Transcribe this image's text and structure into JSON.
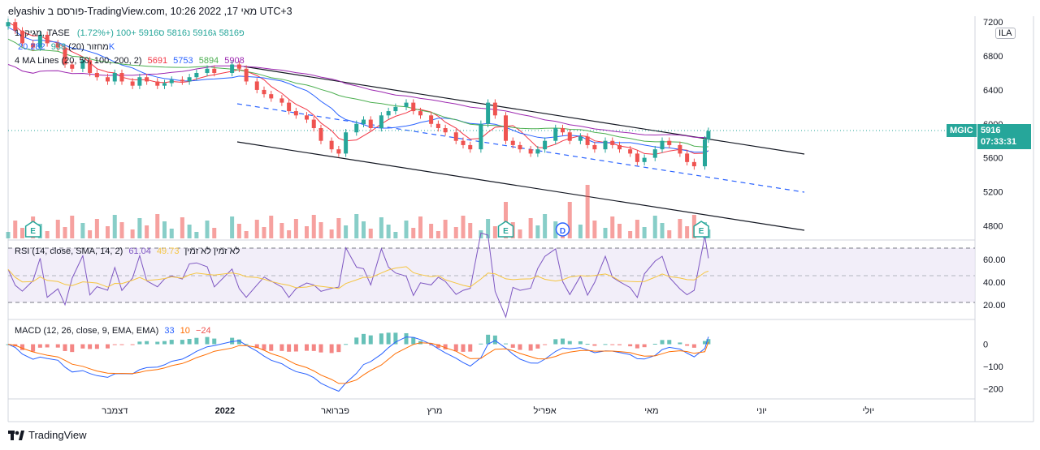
{
  "header": {
    "title": "elyashiv פורסם ב-TradingView.com, 10:26 2022 ,17 מאי UTC+3"
  },
  "legend": {
    "symbol": "1, מגיק, TASE",
    "ohlc_text": "פ5816  ג5916  נ5816  ס5916  +100 (+1.72%)",
    "volume_label": "מחזור (20)",
    "volume_values": [
      "938",
      "20.282K"
    ],
    "ma_label": "4 MA Lines (20, 50, 100, 200, 2)",
    "ma_values": [
      "5691",
      "5753",
      "5894",
      "5908"
    ],
    "rsi_label": "RSI (14, close, SMA, 14, 2)",
    "rsi_values": [
      "61.04",
      "49.73"
    ],
    "rsi_na": "לא זמין  לא זמין",
    "macd_label": "MACD (12, 26, close, 9, EMA, EMA)",
    "macd_values": [
      "33",
      "10",
      "−24"
    ],
    "ila": "ILA"
  },
  "price_tag": {
    "symbol": "MGIC",
    "price": "5916",
    "countdown": "07:33:31"
  },
  "price_axis": [
    "7200",
    "6800",
    "6400",
    "6000",
    "5600",
    "5200",
    "4800"
  ],
  "rsi_axis": [
    "60.00",
    "40.00",
    "20.00"
  ],
  "macd_axis": [
    "0",
    "−100",
    "−200"
  ],
  "time_axis": [
    "דצמבר",
    "2022",
    "פברואר",
    "מרץ",
    "אפריל",
    "מאי",
    "יוני",
    "יולי"
  ],
  "events": [
    "E",
    "E",
    "D",
    "E"
  ],
  "brand": "TradingView",
  "colors": {
    "up": "#26a69a",
    "down": "#ef5350",
    "ma20": "#f23645",
    "ma50": "#2962ff",
    "ma100": "#4caf50",
    "ma200": "#9c27b0",
    "rsi": "#7e57c2",
    "rsi_sma": "#f5c542",
    "macd": "#2962ff",
    "signal": "#ff6d00"
  },
  "chart_data": {
    "type": "candlestick",
    "x_range": [
      "2021-11-01",
      "2022-07-31"
    ],
    "price_range": [
      4650,
      7250
    ],
    "x": [
      "2021-11-01",
      "2021-11-03",
      "2021-11-05",
      "2021-11-08",
      "2021-11-10",
      "2021-11-12",
      "2021-11-15",
      "2021-11-17",
      "2021-11-19",
      "2021-11-22",
      "2021-11-24",
      "2021-11-26",
      "2021-11-29",
      "2021-12-01",
      "2021-12-03",
      "2021-12-06",
      "2021-12-08",
      "2021-12-10",
      "2021-12-13",
      "2021-12-15",
      "2021-12-17",
      "2021-12-20",
      "2021-12-22",
      "2021-12-24",
      "2021-12-27",
      "2021-12-29",
      "2022-01-03",
      "2022-01-05",
      "2022-01-07",
      "2022-01-10",
      "2022-01-12",
      "2022-01-14",
      "2022-01-17",
      "2022-01-19",
      "2022-01-21",
      "2022-01-24",
      "2022-01-26",
      "2022-01-28",
      "2022-01-31",
      "2022-02-02",
      "2022-02-04",
      "2022-02-07",
      "2022-02-09",
      "2022-02-11",
      "2022-02-14",
      "2022-02-16",
      "2022-02-18",
      "2022-02-21",
      "2022-02-23",
      "2022-02-25",
      "2022-02-28",
      "2022-03-02",
      "2022-03-04",
      "2022-03-07",
      "2022-03-09",
      "2022-03-11",
      "2022-03-14",
      "2022-03-16",
      "2022-03-18",
      "2022-03-21",
      "2022-03-23",
      "2022-03-25",
      "2022-03-28",
      "2022-03-30",
      "2022-04-01",
      "2022-04-04",
      "2022-04-06",
      "2022-04-08",
      "2022-04-11",
      "2022-04-13",
      "2022-04-15",
      "2022-04-18",
      "2022-04-20",
      "2022-04-22",
      "2022-04-25",
      "2022-04-27",
      "2022-04-29",
      "2022-05-02",
      "2022-05-04",
      "2022-05-06",
      "2022-05-09",
      "2022-05-11",
      "2022-05-13",
      "2022-05-16",
      "2022-05-17"
    ],
    "close": [
      7200,
      7100,
      6950,
      6900,
      7050,
      6950,
      6900,
      6700,
      6650,
      6750,
      6600,
      6550,
      6500,
      6600,
      6500,
      6450,
      6550,
      6500,
      6450,
      6480,
      6520,
      6500,
      6550,
      6600,
      6650,
      6600,
      6700,
      6650,
      6500,
      6400,
      6350,
      6300,
      6250,
      6150,
      6100,
      6050,
      5950,
      5800,
      5700,
      5650,
      5900,
      6000,
      6050,
      5950,
      6100,
      6150,
      6200,
      6250,
      6150,
      6100,
      6000,
      5950,
      5900,
      5800,
      5750,
      5700,
      6000,
      6250,
      6100,
      5800,
      5750,
      5700,
      5650,
      5700,
      5800,
      5950,
      5900,
      5800,
      5850,
      5750,
      5700,
      5800,
      5750,
      5700,
      5650,
      5550,
      5600,
      5700,
      5800,
      5750,
      5650,
      5550,
      5500,
      5816,
      5916
    ],
    "open": [
      7150,
      7200,
      7100,
      6950,
      6900,
      7050,
      6950,
      6900,
      6700,
      6650,
      6750,
      6600,
      6550,
      6500,
      6600,
      6500,
      6450,
      6550,
      6500,
      6450,
      6480,
      6520,
      6500,
      6550,
      6600,
      6650,
      6600,
      6700,
      6650,
      6500,
      6400,
      6350,
      6300,
      6250,
      6150,
      6100,
      6050,
      5950,
      5800,
      5700,
      5650,
      5900,
      6000,
      6050,
      5950,
      6100,
      6150,
      6200,
      6250,
      6150,
      6100,
      6000,
      5950,
      5900,
      5800,
      5750,
      5700,
      6000,
      6250,
      6100,
      5800,
      5750,
      5700,
      5650,
      5700,
      5800,
      5950,
      5900,
      5800,
      5850,
      5750,
      5700,
      5800,
      5750,
      5700,
      5650,
      5550,
      5600,
      5700,
      5800,
      5750,
      5650,
      5550,
      5500,
      5816
    ],
    "volume_peak_dates": [
      "2022-03-21",
      "2022-04-08",
      "2022-04-13"
    ],
    "ma_last": {
      "ma20": 5691,
      "ma50": 5753,
      "ma100": 5894,
      "ma200": 5908
    },
    "rsi_last": 61.04,
    "rsi_sma_last": 49.73,
    "macd_last": {
      "macd": 33,
      "signal": 10,
      "histogram": -24
    },
    "rsi_range": [
      10,
      70
    ],
    "macd_range": [
      -230,
      60
    ]
  }
}
